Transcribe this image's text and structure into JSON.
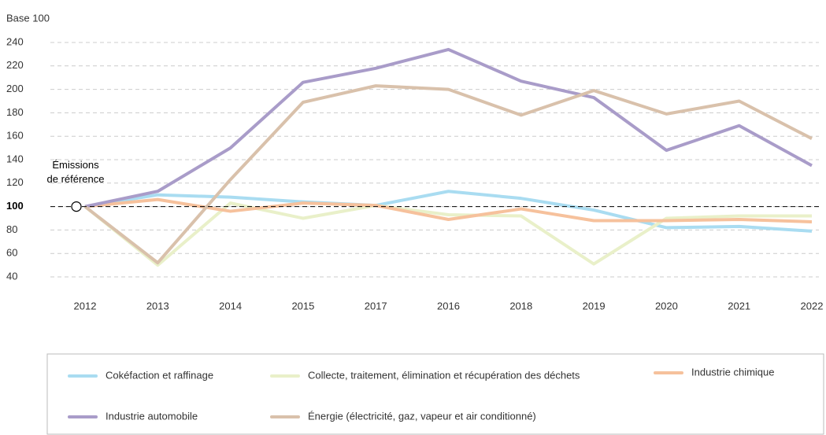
{
  "chart_data": {
    "type": "line",
    "y_axis_label": "Base 100",
    "categories": [
      "2012",
      "2013",
      "2014",
      "2015",
      "2017",
      "2016",
      "2018",
      "2019",
      "2020",
      "2021",
      "2022"
    ],
    "series": [
      {
        "name": "Cokéfaction et raffinage",
        "color": "#a9dcf1",
        "values": [
          100,
          110,
          108,
          104,
          101,
          113,
          107,
          97,
          82,
          83,
          79
        ]
      },
      {
        "name": "Collecte, traitement, élimination et récupération des déchets",
        "color": "#e9f0c9",
        "values": [
          100,
          50,
          103,
          90,
          101,
          93,
          92,
          51,
          90,
          92,
          92
        ]
      },
      {
        "name": "Industrie chimique",
        "color": "#f6c19c",
        "values": [
          100,
          106,
          96,
          103,
          101,
          89,
          98,
          88,
          88,
          89,
          87
        ]
      },
      {
        "name": "Industrie automobile",
        "color": "#a99cc9",
        "values": [
          100,
          113,
          150,
          206,
          218,
          234,
          207,
          193,
          148,
          169,
          135
        ]
      },
      {
        "name": "Énergie (électricité, gaz, vapeur et air conditionné)",
        "color": "#d9c1ab",
        "values": [
          100,
          52,
          123,
          189,
          203,
          200,
          178,
          199,
          179,
          190,
          158
        ]
      }
    ],
    "ylim": [
      40,
      240
    ],
    "yticks": [
      40,
      60,
      80,
      100,
      120,
      140,
      160,
      180,
      200,
      220,
      240
    ],
    "grid": true,
    "reference_line": 100,
    "annotation": {
      "lines": [
        "Émissions",
        "de référence"
      ],
      "category_index": 0,
      "value": 100
    }
  }
}
